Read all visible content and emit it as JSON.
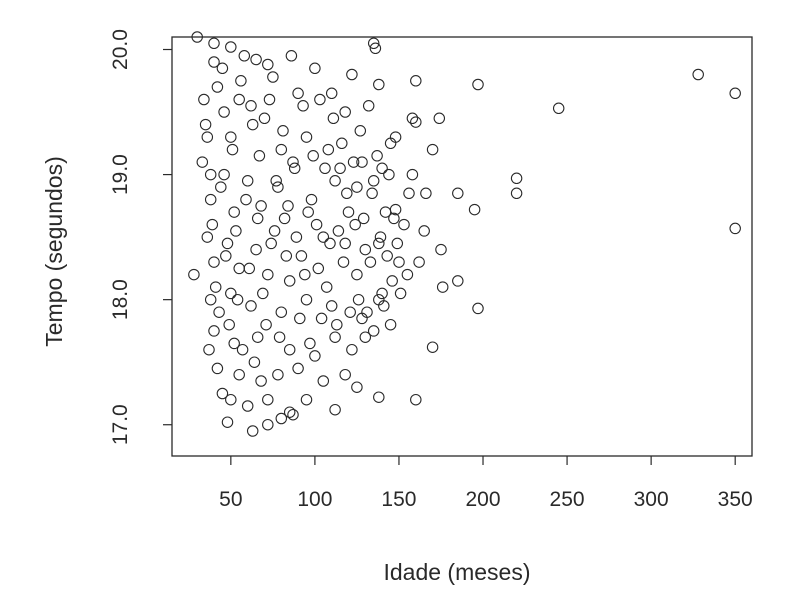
{
  "chart_data": {
    "type": "scatter",
    "title": "",
    "xlabel": "Idade (meses)",
    "ylabel": "Tempo (segundos)",
    "xlim": [
      15,
      360
    ],
    "ylim": [
      16.75,
      20.1
    ],
    "xticks": [
      50,
      100,
      150,
      200,
      250,
      300,
      350
    ],
    "yticks": [
      17.0,
      18.0,
      19.0,
      20.0
    ],
    "xtick_labels": [
      "50",
      "100",
      "150",
      "200",
      "250",
      "300",
      "350"
    ],
    "ytick_labels": [
      "17.0",
      "18.0",
      "19.0",
      "20.0"
    ],
    "grid": false,
    "legend": "none",
    "marker": "open-circle",
    "marker_color": "#2a2a2a",
    "background": "#ffffff",
    "points": [
      [
        30,
        20.1
      ],
      [
        40,
        20.05
      ],
      [
        50,
        20.02
      ],
      [
        135,
        20.05
      ],
      [
        136,
        20.01
      ],
      [
        40,
        19.9
      ],
      [
        45,
        19.85
      ],
      [
        58,
        19.95
      ],
      [
        65,
        19.92
      ],
      [
        72,
        19.88
      ],
      [
        86,
        19.95
      ],
      [
        100,
        19.85
      ],
      [
        122,
        19.8
      ],
      [
        138,
        19.72
      ],
      [
        160,
        19.75
      ],
      [
        197,
        19.72
      ],
      [
        245,
        19.53
      ],
      [
        328,
        19.8
      ],
      [
        350,
        19.65
      ],
      [
        42,
        19.7
      ],
      [
        55,
        19.6
      ],
      [
        62,
        19.55
      ],
      [
        75,
        19.78
      ],
      [
        90,
        19.65
      ],
      [
        103,
        19.6
      ],
      [
        110,
        19.65
      ],
      [
        118,
        19.5
      ],
      [
        132,
        19.55
      ],
      [
        148,
        19.3
      ],
      [
        158,
        19.45
      ],
      [
        160,
        19.42
      ],
      [
        174,
        19.45
      ],
      [
        35,
        19.4
      ],
      [
        50,
        19.3
      ],
      [
        70,
        19.45
      ],
      [
        80,
        19.2
      ],
      [
        95,
        19.3
      ],
      [
        108,
        19.2
      ],
      [
        115,
        19.05
      ],
      [
        128,
        19.1
      ],
      [
        140,
        19.05
      ],
      [
        170,
        19.2
      ],
      [
        145,
        19.25
      ],
      [
        33,
        19.1
      ],
      [
        46,
        19.0
      ],
      [
        60,
        18.95
      ],
      [
        78,
        18.9
      ],
      [
        88,
        19.05
      ],
      [
        112,
        18.95
      ],
      [
        125,
        18.9
      ],
      [
        135,
        18.95
      ],
      [
        158,
        19.0
      ],
      [
        185,
        18.85
      ],
      [
        220,
        18.97
      ],
      [
        220,
        18.85
      ],
      [
        38,
        18.8
      ],
      [
        52,
        18.7
      ],
      [
        68,
        18.75
      ],
      [
        82,
        18.65
      ],
      [
        98,
        18.8
      ],
      [
        120,
        18.7
      ],
      [
        142,
        18.7
      ],
      [
        148,
        18.72
      ],
      [
        165,
        18.55
      ],
      [
        195,
        18.72
      ],
      [
        350,
        18.57
      ],
      [
        36,
        18.5
      ],
      [
        48,
        18.45
      ],
      [
        65,
        18.4
      ],
      [
        76,
        18.55
      ],
      [
        92,
        18.35
      ],
      [
        105,
        18.5
      ],
      [
        118,
        18.45
      ],
      [
        130,
        18.4
      ],
      [
        138,
        18.45
      ],
      [
        150,
        18.3
      ],
      [
        175,
        18.4
      ],
      [
        28,
        18.2
      ],
      [
        40,
        18.3
      ],
      [
        55,
        18.25
      ],
      [
        72,
        18.2
      ],
      [
        85,
        18.15
      ],
      [
        102,
        18.25
      ],
      [
        125,
        18.2
      ],
      [
        140,
        18.05
      ],
      [
        155,
        18.2
      ],
      [
        176,
        18.1
      ],
      [
        185,
        18.15
      ],
      [
        38,
        18.0
      ],
      [
        50,
        18.05
      ],
      [
        62,
        17.95
      ],
      [
        80,
        17.9
      ],
      [
        95,
        18.0
      ],
      [
        110,
        17.95
      ],
      [
        128,
        17.85
      ],
      [
        138,
        18.0
      ],
      [
        145,
        17.8
      ],
      [
        197,
        17.93
      ],
      [
        40,
        17.75
      ],
      [
        52,
        17.65
      ],
      [
        66,
        17.7
      ],
      [
        85,
        17.6
      ],
      [
        100,
        17.55
      ],
      [
        112,
        17.7
      ],
      [
        122,
        17.6
      ],
      [
        130,
        17.7
      ],
      [
        135,
        17.75
      ],
      [
        170,
        17.62
      ],
      [
        42,
        17.45
      ],
      [
        55,
        17.4
      ],
      [
        68,
        17.35
      ],
      [
        78,
        17.4
      ],
      [
        90,
        17.45
      ],
      [
        105,
        17.35
      ],
      [
        118,
        17.4
      ],
      [
        125,
        17.3
      ],
      [
        138,
        17.22
      ],
      [
        45,
        17.25
      ],
      [
        50,
        17.2
      ],
      [
        60,
        17.15
      ],
      [
        72,
        17.2
      ],
      [
        85,
        17.1
      ],
      [
        95,
        17.2
      ],
      [
        112,
        17.12
      ],
      [
        160,
        17.2
      ],
      [
        48,
        17.02
      ],
      [
        63,
        16.95
      ],
      [
        72,
        17.0
      ],
      [
        80,
        17.05
      ],
      [
        87,
        17.08
      ],
      [
        34,
        19.6
      ],
      [
        36,
        19.3
      ],
      [
        38,
        19.0
      ],
      [
        39,
        18.6
      ],
      [
        41,
        18.1
      ],
      [
        43,
        17.9
      ],
      [
        37,
        17.6
      ],
      [
        44,
        18.9
      ],
      [
        46,
        19.5
      ],
      [
        47,
        18.35
      ],
      [
        49,
        17.8
      ],
      [
        51,
        19.2
      ],
      [
        53,
        18.55
      ],
      [
        54,
        18.0
      ],
      [
        56,
        19.75
      ],
      [
        57,
        17.6
      ],
      [
        59,
        18.8
      ],
      [
        61,
        18.25
      ],
      [
        63,
        19.4
      ],
      [
        64,
        17.5
      ],
      [
        66,
        18.65
      ],
      [
        67,
        19.15
      ],
      [
        69,
        18.05
      ],
      [
        71,
        17.8
      ],
      [
        73,
        19.6
      ],
      [
        74,
        18.45
      ],
      [
        77,
        18.95
      ],
      [
        79,
        17.7
      ],
      [
        81,
        19.35
      ],
      [
        83,
        18.35
      ],
      [
        84,
        18.75
      ],
      [
        87,
        19.1
      ],
      [
        89,
        18.5
      ],
      [
        91,
        17.85
      ],
      [
        93,
        19.55
      ],
      [
        94,
        18.2
      ],
      [
        96,
        18.7
      ],
      [
        97,
        17.65
      ],
      [
        99,
        19.15
      ],
      [
        101,
        18.6
      ],
      [
        104,
        17.85
      ],
      [
        106,
        19.05
      ],
      [
        107,
        18.1
      ],
      [
        109,
        18.45
      ],
      [
        111,
        19.45
      ],
      [
        113,
        17.8
      ],
      [
        114,
        18.55
      ],
      [
        116,
        19.25
      ],
      [
        117,
        18.3
      ],
      [
        119,
        18.85
      ],
      [
        121,
        17.9
      ],
      [
        123,
        19.1
      ],
      [
        124,
        18.6
      ],
      [
        126,
        18.0
      ],
      [
        127,
        19.35
      ],
      [
        129,
        18.65
      ],
      [
        131,
        17.9
      ],
      [
        133,
        18.3
      ],
      [
        134,
        18.85
      ],
      [
        137,
        19.15
      ],
      [
        139,
        18.5
      ],
      [
        141,
        17.95
      ],
      [
        143,
        18.35
      ],
      [
        144,
        19.0
      ],
      [
        146,
        18.15
      ],
      [
        147,
        18.65
      ],
      [
        149,
        18.45
      ],
      [
        151,
        18.05
      ],
      [
        153,
        18.6
      ],
      [
        156,
        18.85
      ],
      [
        162,
        18.3
      ],
      [
        166,
        18.85
      ]
    ]
  }
}
